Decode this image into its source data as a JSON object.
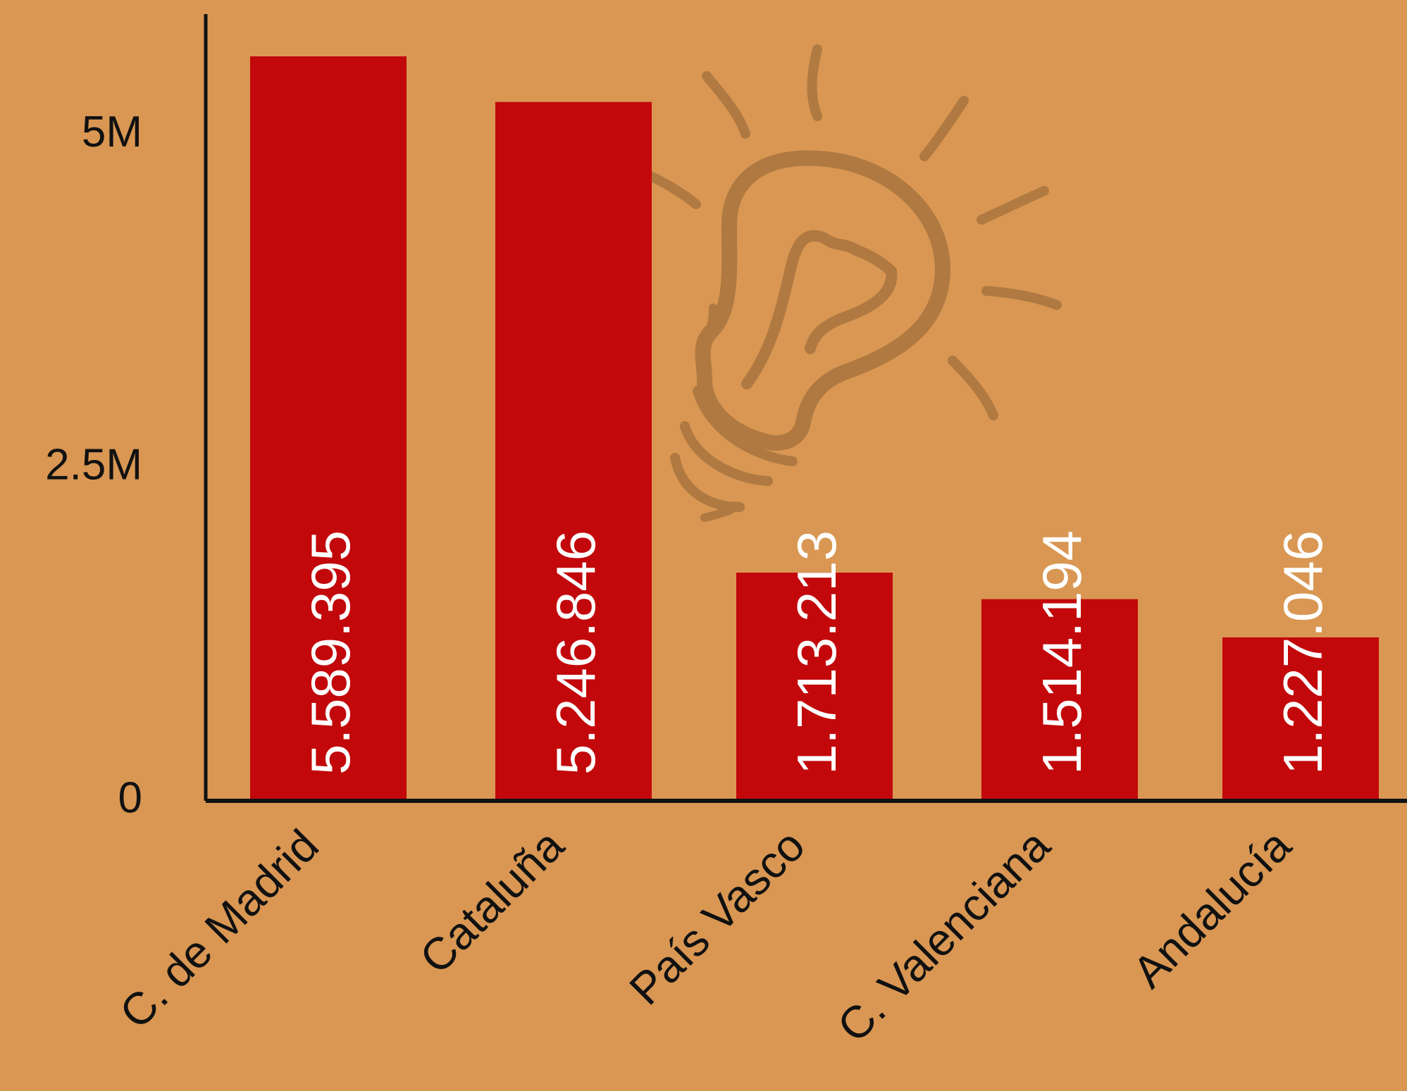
{
  "colors": {
    "background": "#D99753",
    "bar": "#C2080B",
    "axis": "#111111",
    "value_label": "#FFFFFF",
    "watermark": "#A8743E"
  },
  "decoration": {
    "watermark_icon": "lightbulb-icon"
  },
  "chart_data": {
    "type": "bar",
    "categories": [
      "C. de Madrid",
      "Cataluña",
      "País Vasco",
      "C. Valenciana",
      "Andalucía"
    ],
    "values": [
      5589395,
      5246846,
      1713213,
      1514194,
      1227046
    ],
    "value_labels": [
      "5.589.395",
      "5.246.846",
      "1.713.213",
      "1.514.194",
      "1.227.046"
    ],
    "yticks": [
      0,
      2500000,
      5000000
    ],
    "ytick_labels": [
      "0",
      "2.5M",
      "5M"
    ],
    "ylim": [
      0,
      5900000
    ],
    "title": "",
    "xlabel": "",
    "ylabel": "",
    "grid": false,
    "legend": "none"
  }
}
